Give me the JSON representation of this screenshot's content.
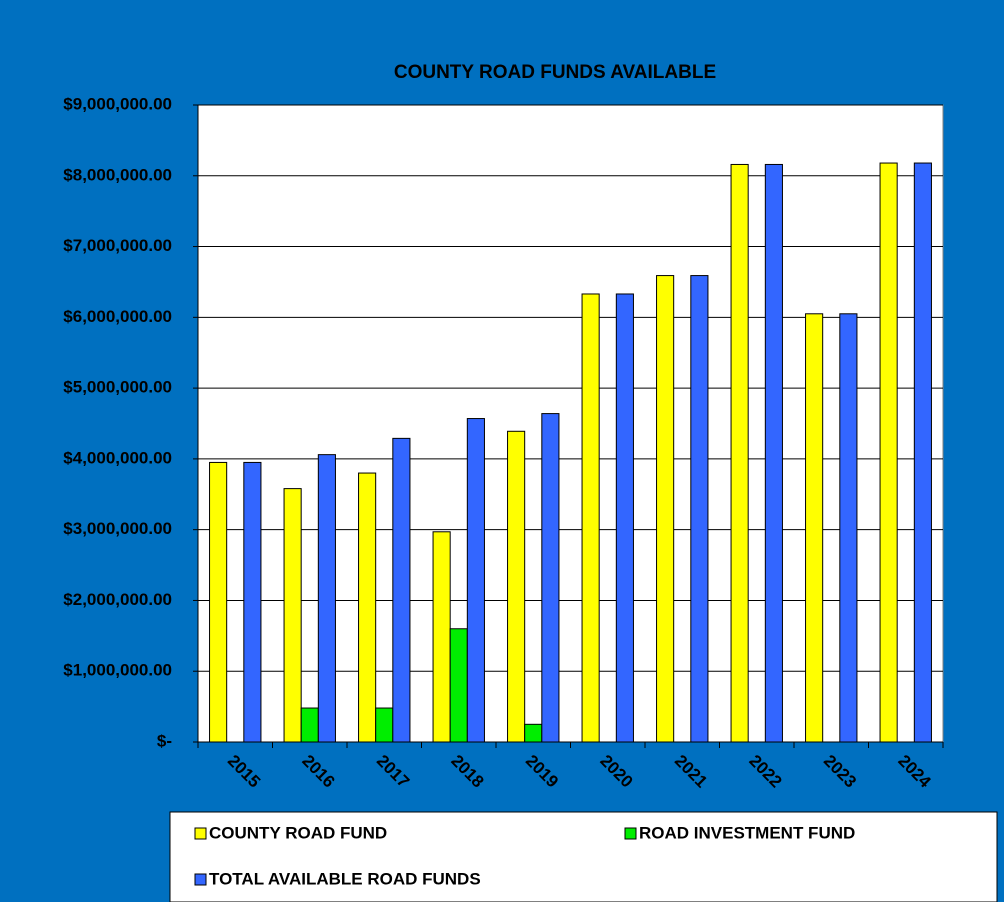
{
  "chart_data": {
    "type": "bar",
    "title": "COUNTY ROAD FUNDS AVAILABLE",
    "categories": [
      "2015",
      "2016",
      "2017",
      "2018",
      "2019",
      "2020",
      "2021",
      "2022",
      "2023",
      "2024"
    ],
    "series": [
      {
        "name": "COUNTY ROAD FUND",
        "color": "#ffff00",
        "values": [
          3950000,
          3580000,
          3800000,
          2970000,
          4390000,
          6330000,
          6590000,
          8160000,
          6050000,
          8180000
        ]
      },
      {
        "name": "ROAD INVESTMENT FUND",
        "color": "#00ee00",
        "values": [
          0,
          480000,
          480000,
          1600000,
          250000,
          0,
          0,
          0,
          0,
          0
        ]
      },
      {
        "name": "TOTAL AVAILABLE ROAD FUNDS",
        "color": "#3366ff",
        "values": [
          3950000,
          4060000,
          4290000,
          4570000,
          4640000,
          6330000,
          6590000,
          8160000,
          6050000,
          8180000
        ]
      }
    ],
    "ylim": [
      0,
      9000000
    ],
    "yticks": [
      {
        "value": 0,
        "label": "$-"
      },
      {
        "value": 1000000,
        "label": "$1,000,000.00"
      },
      {
        "value": 2000000,
        "label": "$2,000,000.00"
      },
      {
        "value": 3000000,
        "label": "$3,000,000.00"
      },
      {
        "value": 4000000,
        "label": "$4,000,000.00"
      },
      {
        "value": 5000000,
        "label": "$5,000,000.00"
      },
      {
        "value": 6000000,
        "label": "$6,000,000.00"
      },
      {
        "value": 7000000,
        "label": "$7,000,000.00"
      },
      {
        "value": 8000000,
        "label": "$8,000,000.00"
      },
      {
        "value": 9000000,
        "label": "$9,000,000.00"
      }
    ],
    "grid": true,
    "legend": "bottom"
  }
}
